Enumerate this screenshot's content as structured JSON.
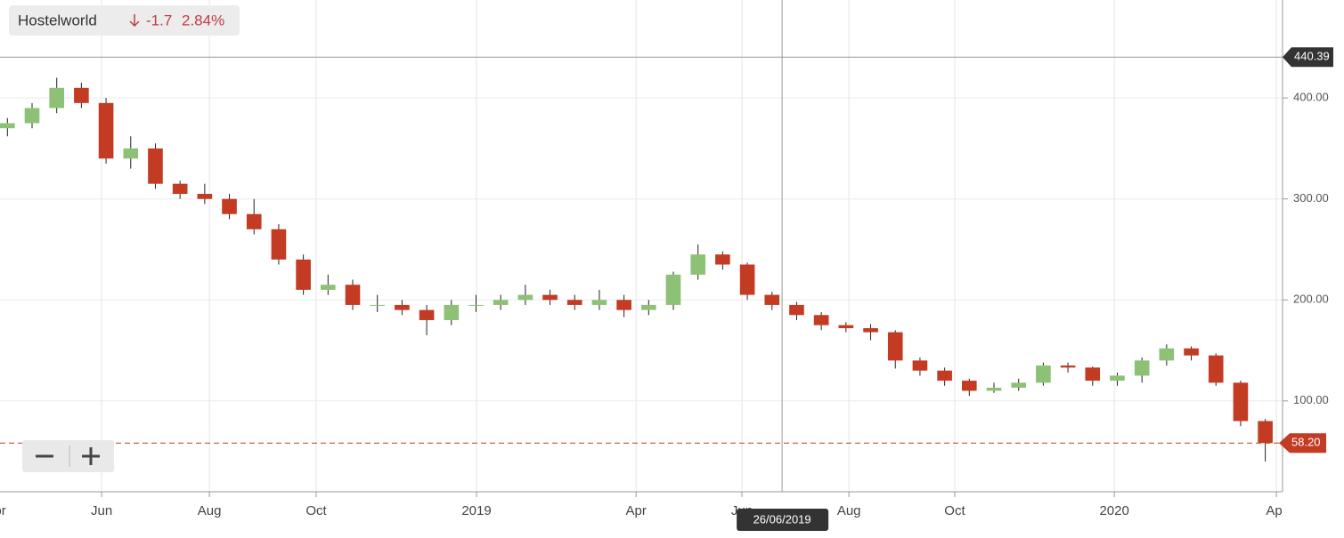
{
  "header": {
    "name": "Hostelworld",
    "change": "-1.7",
    "change_pct": "2.84%"
  },
  "chart_data": {
    "type": "candlestick",
    "open": [
      370,
      375,
      390,
      410,
      395,
      340,
      350,
      315,
      305,
      300,
      285,
      270,
      240,
      210,
      215,
      195,
      195,
      190,
      180,
      195,
      195,
      200,
      205,
      200,
      195,
      200,
      190,
      195,
      225,
      245,
      235,
      205,
      195,
      185,
      175,
      172,
      168,
      140,
      130,
      120,
      110,
      113,
      118,
      135,
      133,
      120,
      125,
      140,
      152,
      145,
      118,
      80
    ],
    "high": [
      380,
      395,
      420,
      415,
      400,
      362,
      355,
      318,
      315,
      305,
      300,
      275,
      245,
      225,
      220,
      205,
      200,
      195,
      200,
      205,
      205,
      215,
      210,
      205,
      210,
      205,
      200,
      228,
      255,
      248,
      237,
      208,
      198,
      188,
      178,
      176,
      170,
      143,
      133,
      122,
      118,
      122,
      138,
      138,
      134,
      128,
      143,
      156,
      154,
      147,
      120,
      82
    ],
    "low": [
      362,
      370,
      385,
      390,
      335,
      330,
      310,
      300,
      295,
      280,
      265,
      235,
      205,
      205,
      190,
      188,
      185,
      165,
      175,
      188,
      190,
      195,
      195,
      190,
      190,
      183,
      185,
      190,
      220,
      230,
      200,
      190,
      180,
      170,
      168,
      160,
      132,
      125,
      115,
      105,
      108,
      110,
      115,
      128,
      115,
      115,
      118,
      135,
      140,
      115,
      75,
      40
    ],
    "close": [
      375,
      390,
      410,
      395,
      340,
      350,
      315,
      305,
      300,
      285,
      270,
      240,
      210,
      215,
      195,
      195,
      190,
      180,
      195,
      195,
      200,
      205,
      200,
      195,
      200,
      190,
      195,
      225,
      245,
      235,
      205,
      195,
      185,
      175,
      172,
      168,
      140,
      130,
      120,
      110,
      113,
      118,
      135,
      133,
      120,
      125,
      140,
      152,
      145,
      118,
      80,
      58.2
    ],
    "up_color": "#8cc176",
    "down_color": "#c23b22",
    "xlim": [
      -0.3,
      51.7
    ],
    "xticks": [
      {
        "value": -0.48,
        "label": "Apr"
      },
      {
        "value": 3.82,
        "label": "Jun"
      },
      {
        "value": 8.19,
        "label": "Aug"
      },
      {
        "value": 12.52,
        "label": "Oct"
      },
      {
        "value": 19.02,
        "label": "2019"
      },
      {
        "value": 25.49,
        "label": "Apr"
      },
      {
        "value": 29.78,
        "label": "Jun"
      },
      {
        "value": 34.12,
        "label": "Aug"
      },
      {
        "value": 38.41,
        "label": "Oct"
      },
      {
        "value": 44.88,
        "label": "2020"
      },
      {
        "value": 51.45,
        "label": "Apr"
      }
    ],
    "ylim": [
      10,
      497
    ],
    "yticks": [
      {
        "value": 100,
        "label": "100.00"
      },
      {
        "value": 200,
        "label": "200.00"
      },
      {
        "value": 300,
        "label": "300.00"
      },
      {
        "value": 400,
        "label": "400.00"
      }
    ],
    "grid": true,
    "last_price": {
      "value": 58.2,
      "label": "58.20"
    },
    "crosshair_price": {
      "value": 440.39,
      "label": "440.39"
    },
    "crosshair_date": {
      "value": 31.41,
      "label": "26/06/2019"
    }
  }
}
